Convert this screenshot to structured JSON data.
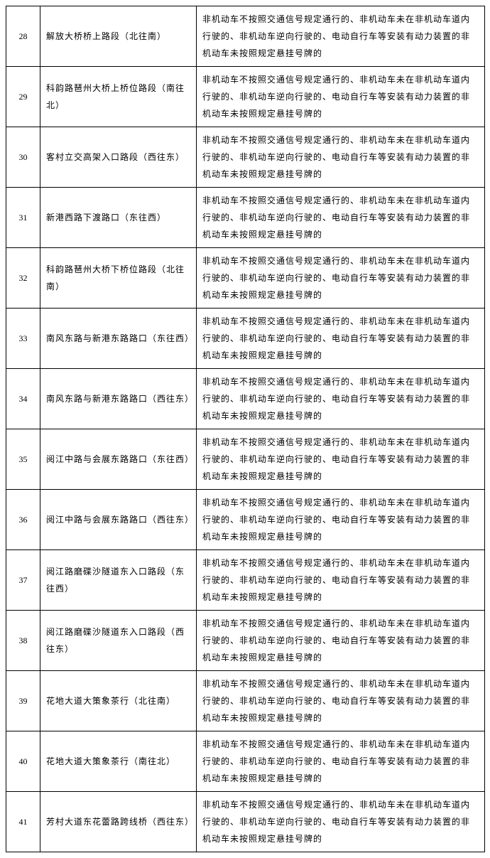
{
  "table": {
    "common_violation": "非机动车不按照交通信号规定通行的、非机动车未在非机动车道内行驶的、非机动车逆向行驶的、电动自行车等安装有动力装置的非机动车未按照规定悬挂号牌的",
    "rows": [
      {
        "num": "28",
        "location": "解放大桥桥上路段（北往南）"
      },
      {
        "num": "29",
        "location": "科韵路琶州大桥上桥位路段（南往北）"
      },
      {
        "num": "30",
        "location": "客村立交高架入口路段（西往东）"
      },
      {
        "num": "31",
        "location": "新港西路下渡路口（东往西）"
      },
      {
        "num": "32",
        "location": "科韵路琶州大桥下桥位路段（北往南）"
      },
      {
        "num": "33",
        "location": "南风东路与新港东路路口（东往西）"
      },
      {
        "num": "34",
        "location": "南风东路与新港东路路口（西往东）"
      },
      {
        "num": "35",
        "location": "阅江中路与会展东路路口（东往西）"
      },
      {
        "num": "36",
        "location": "阅江中路与会展东路路口（西往东）"
      },
      {
        "num": "37",
        "location": "阅江路磨碟沙隧道东入口路段（东往西）"
      },
      {
        "num": "38",
        "location": "阅江路磨碟沙隧道东入口路段（西往东）"
      },
      {
        "num": "39",
        "location": "花地大道大策象茶行（北往南）"
      },
      {
        "num": "40",
        "location": "花地大道大策象茶行（南往北）"
      },
      {
        "num": "41",
        "location": "芳村大道东花蕾路跨线桥（西往东）"
      }
    ]
  }
}
